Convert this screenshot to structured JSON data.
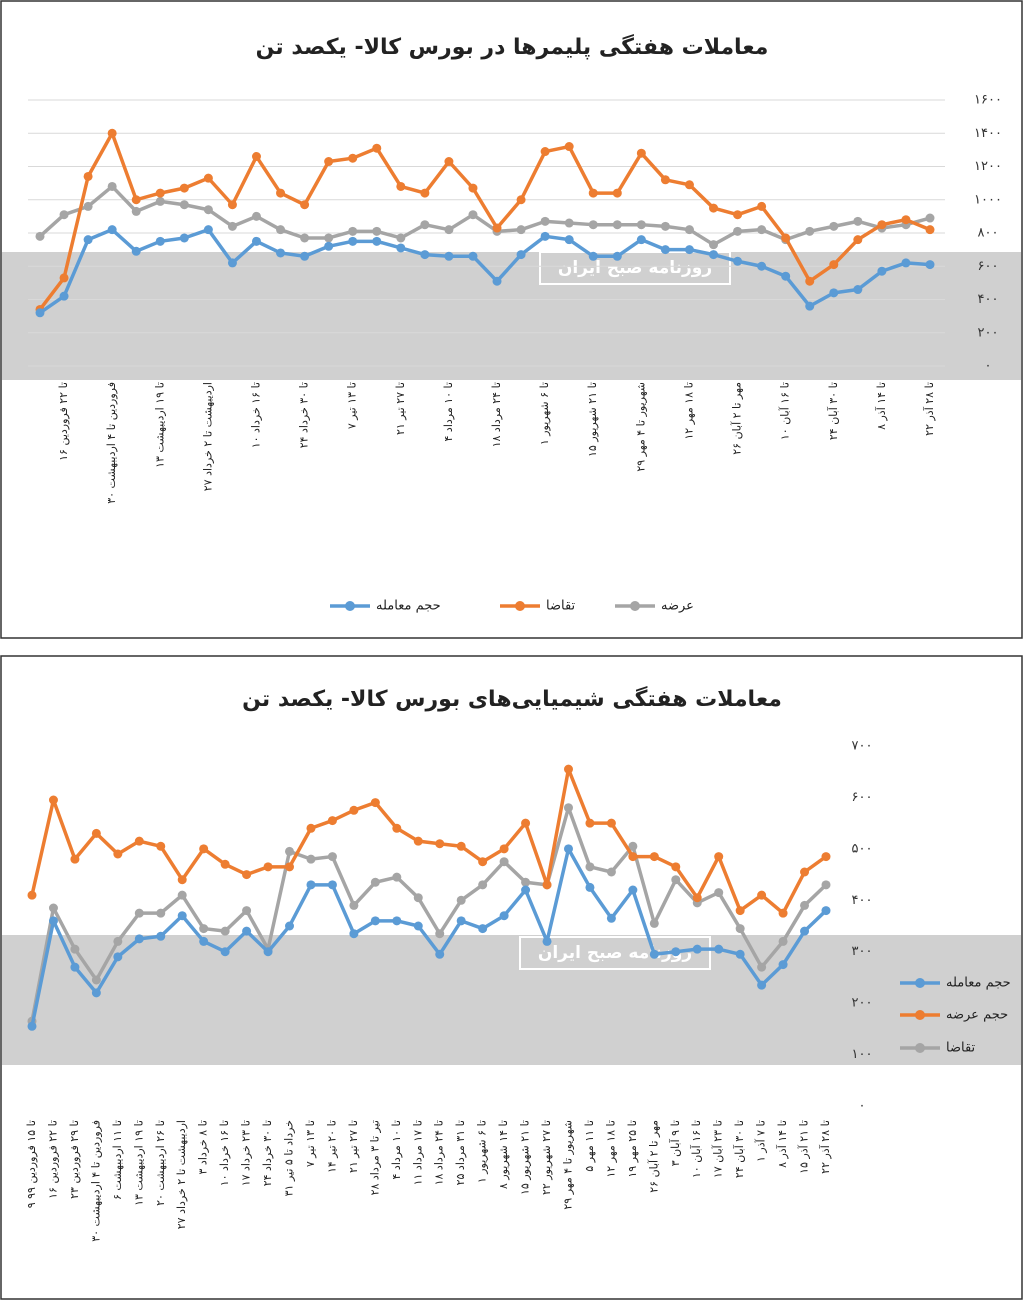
{
  "chart_data": [
    {
      "type": "line",
      "title": "معاملات هفتگی پلیمرها در بورس کالا- یکصد تن",
      "watermark": "روزنامه صبح ایران",
      "legend": "bottom",
      "grid": true,
      "categories": [
        null,
        "۱۶ تا ۲۲ فروردین",
        null,
        "۳۰ فروردین تا ۴ اردیبهشت",
        null,
        "۱۳ تا ۱۹ اردیبهشت",
        null,
        "۲۷ اردیبهشت تا ۲ خرداد",
        null,
        "۱۰ تا ۱۶ خرداد",
        null,
        "۲۴ تا ۳۰ خرداد",
        null,
        "۷ تا ۱۳ تیر",
        null,
        "۲۱ تا ۲۷ تیر",
        null,
        "۴ تا ۱۰ مرداد",
        null,
        "۱۸ تا ۲۴ مرداد",
        null,
        "۱ تا ۶ شهریور",
        null,
        "۱۵ تا ۲۱ شهریور",
        null,
        "۲۹ شهریور تا ۴ مهر",
        null,
        "۱۲ تا ۱۸ مهر",
        null,
        "۲۶ مهر تا ۲ آبان",
        null,
        "۱۰ تا ۱۶ آبان",
        null,
        "۲۴ تا ۳۰ آبان",
        null,
        "۸ تا ۱۴ آذر",
        null,
        "۲۲ تا ۲۸ آذر"
      ],
      "ylim": [
        0,
        1600
      ],
      "yticks": [
        {
          "value": 0,
          "label": "۰"
        },
        {
          "value": 200,
          "label": "۲۰۰"
        },
        {
          "value": 400,
          "label": "۴۰۰"
        },
        {
          "value": 600,
          "label": "۶۰۰"
        },
        {
          "value": 800,
          "label": "۸۰۰"
        },
        {
          "value": 1000,
          "label": "۱۰۰۰"
        },
        {
          "value": 1200,
          "label": "۱۲۰۰"
        },
        {
          "value": 1400,
          "label": "۱۴۰۰"
        },
        {
          "value": 1600,
          "label": "۱۶۰۰"
        }
      ],
      "series": [
        {
          "name": "حجم معامله",
          "color": "#5b9bd5",
          "values": [
            320,
            420,
            760,
            820,
            690,
            750,
            770,
            820,
            620,
            750,
            680,
            660,
            720,
            750,
            750,
            710,
            670,
            660,
            660,
            510,
            670,
            780,
            760,
            660,
            660,
            760,
            700,
            700,
            670,
            630,
            600,
            540,
            360,
            440,
            460,
            570,
            620,
            610
          ]
        },
        {
          "name": "تقاضا",
          "color": "#ed7d31",
          "values": [
            340,
            530,
            1140,
            1400,
            1000,
            1040,
            1070,
            1130,
            970,
            1260,
            1040,
            970,
            1230,
            1250,
            1310,
            1080,
            1040,
            1230,
            1070,
            830,
            1000,
            1290,
            1320,
            1040,
            1040,
            1280,
            1120,
            1090,
            950,
            910,
            960,
            770,
            510,
            610,
            760,
            850,
            880,
            820
          ]
        },
        {
          "name": "عرضه",
          "color": "#a5a5a5",
          "values": [
            780,
            910,
            960,
            1080,
            930,
            990,
            970,
            940,
            840,
            900,
            820,
            770,
            770,
            810,
            810,
            770,
            850,
            820,
            910,
            810,
            820,
            870,
            860,
            850,
            850,
            850,
            840,
            820,
            730,
            810,
            820,
            760,
            810,
            840,
            870,
            830,
            850,
            890
          ]
        }
      ]
    },
    {
      "type": "line",
      "title": "معاملات هفتگی شیمیایی‌های بورس کالا- یکصد تن",
      "watermark": "روزنامه صبح ایران",
      "legend": "right",
      "grid": false,
      "categories": [
        "۹ تا ۱۵ فروردین ۹۹",
        "۱۶ تا ۲۲ فروردین",
        "۲۳ تا ۲۹ فروردین",
        "۳۰ فروردین تا ۴ اردیبهشت",
        "۶ تا ۱۱ اردیبهشت",
        "۱۳ تا ۱۹ اردیبهشت",
        "۲۰ تا ۲۶ اردیبهشت",
        "۲۷ اردیبهشت تا ۲ خرداد",
        "۳ تا ۸ خرداد",
        "۱۰ تا ۱۶ خرداد",
        "۱۷ تا ۲۳ خرداد",
        "۲۴ تا ۳۰ خرداد",
        "۳۱ خرداد تا ۵ تیر",
        "۷ تا ۱۳ تیر",
        "۱۴ تا ۲۰ تیر",
        "۲۱ تا ۲۷ تیر",
        "۲۸ تیر تا ۳ مرداد",
        "۴ تا ۱۰ مرداد",
        "۱۱ تا ۱۷ مرداد",
        "۱۸ تا ۲۴ مرداد",
        "۲۵ تا ۳۱ مرداد",
        "۱ تا ۶ شهریور",
        "۸ تا ۱۴ شهریور",
        "۱۵ تا ۲۱ شهریور",
        "۲۲ تا ۲۷ شهریور",
        "۲۹ شهریور تا ۴ مهر",
        "۵ تا ۱۱ مهر",
        "۱۲ تا ۱۸ مهر",
        "۱۹ تا ۲۵ مهر",
        "۲۶ مهر تا ۲ آبان",
        "۳ تا ۹ آبان",
        "۱۰ تا ۱۶ آبان",
        "۱۷ تا ۲۳ آبان",
        "۲۴ تا ۳۰ آبان",
        "۱ تا ۷ آذر",
        "۸ تا ۱۴ آذر",
        "۱۵ تا ۲۱ آذر",
        "۲۲ تا ۲۸ آذر"
      ],
      "ylim": [
        0,
        700
      ],
      "yticks": [
        {
          "value": 0,
          "label": "۰"
        },
        {
          "value": 100,
          "label": "۱۰۰"
        },
        {
          "value": 200,
          "label": "۲۰۰"
        },
        {
          "value": 300,
          "label": "۳۰۰"
        },
        {
          "value": 400,
          "label": "۴۰۰"
        },
        {
          "value": 500,
          "label": "۵۰۰"
        },
        {
          "value": 600,
          "label": "۶۰۰"
        },
        {
          "value": 700,
          "label": "۷۰۰"
        }
      ],
      "series": [
        {
          "name": "حجم معامله",
          "color": "#5b9bd5",
          "values": [
            155,
            360,
            270,
            220,
            290,
            325,
            330,
            370,
            320,
            300,
            340,
            300,
            350,
            430,
            430,
            335,
            360,
            360,
            350,
            295,
            360,
            345,
            370,
            420,
            320,
            500,
            425,
            365,
            420,
            295,
            300,
            305,
            305,
            295,
            235,
            275,
            340,
            380
          ]
        },
        {
          "name": "حجم عرضه",
          "color": "#ed7d31",
          "values": [
            410,
            595,
            480,
            530,
            490,
            515,
            505,
            440,
            500,
            470,
            450,
            465,
            465,
            540,
            555,
            575,
            590,
            540,
            515,
            510,
            505,
            475,
            500,
            550,
            430,
            655,
            550,
            550,
            485,
            485,
            465,
            405,
            485,
            380,
            410,
            375,
            455,
            485
          ]
        },
        {
          "name": "تقاضا",
          "color": "#a5a5a5",
          "values": [
            165,
            385,
            305,
            245,
            320,
            375,
            375,
            410,
            345,
            340,
            380,
            305,
            495,
            480,
            485,
            390,
            435,
            445,
            405,
            335,
            400,
            430,
            475,
            435,
            430,
            580,
            465,
            455,
            505,
            355,
            440,
            395,
            415,
            345,
            270,
            320,
            390,
            430
          ]
        }
      ]
    }
  ]
}
